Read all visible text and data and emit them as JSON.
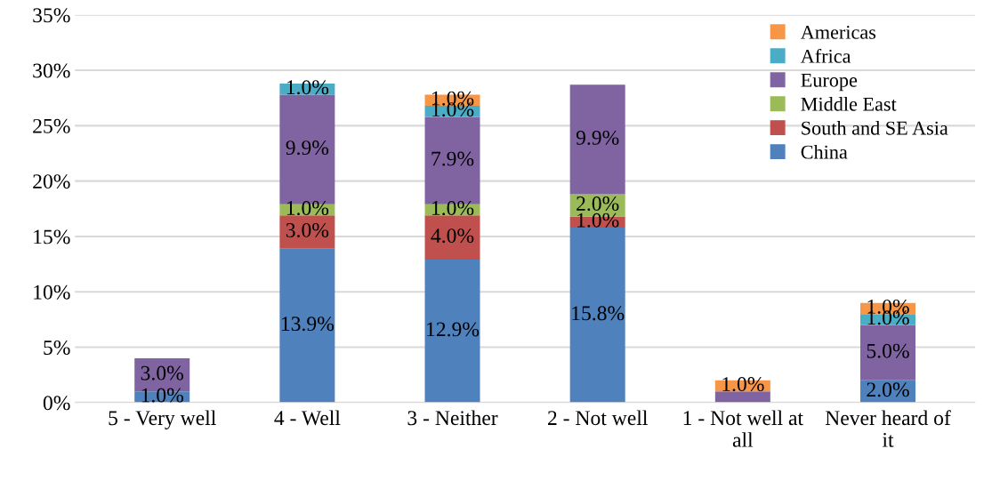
{
  "chart_data": {
    "type": "bar",
    "stacked": true,
    "categories": [
      "5 - Very well",
      "4 - Well",
      "3 - Neither",
      "2 - Not well",
      "1 - Not well at all",
      "Never heard of it"
    ],
    "series": [
      {
        "name": "China",
        "color": "#4f81bd",
        "values": [
          1.0,
          13.9,
          12.9,
          15.8,
          null,
          2.0
        ],
        "value_labels": [
          "1.0%",
          "13.9%",
          "12.9%",
          "15.8%",
          null,
          "2.0%"
        ]
      },
      {
        "name": "South and SE Asia",
        "color": "#c0504d",
        "values": [
          null,
          3.0,
          4.0,
          1.0,
          null,
          null
        ],
        "value_labels": [
          null,
          "3.0%",
          "4.0%",
          "1.0%",
          null,
          null
        ]
      },
      {
        "name": "Middle East",
        "color": "#9bbb59",
        "values": [
          null,
          1.0,
          1.0,
          2.0,
          null,
          null
        ],
        "value_labels": [
          null,
          "1.0%",
          "1.0%",
          "2.0%",
          null,
          null
        ]
      },
      {
        "name": "Europe",
        "color": "#8064a2",
        "values": [
          3.0,
          9.9,
          7.9,
          9.9,
          1.0,
          5.0
        ],
        "value_labels": [
          "3.0%",
          "9.9%",
          "7.9%",
          "9.9%",
          null,
          "5.0%"
        ]
      },
      {
        "name": "Africa",
        "color": "#4bacc6",
        "values": [
          null,
          1.0,
          1.0,
          null,
          null,
          1.0
        ],
        "value_labels": [
          null,
          "1.0%",
          "1.0%",
          null,
          null,
          "1.0%"
        ]
      },
      {
        "name": "Americas",
        "color": "#f79646",
        "values": [
          null,
          null,
          1.0,
          null,
          1.0,
          1.0
        ],
        "value_labels": [
          null,
          null,
          "1.0%",
          null,
          "1.0%",
          "1.0%"
        ]
      }
    ],
    "ylim": [
      0,
      35
    ],
    "yticks": [
      {
        "value": 0,
        "label": "0%"
      },
      {
        "value": 5,
        "label": "5%"
      },
      {
        "value": 10,
        "label": "10%"
      },
      {
        "value": 15,
        "label": "15%"
      },
      {
        "value": 20,
        "label": "20%"
      },
      {
        "value": 25,
        "label": "25%"
      },
      {
        "value": 30,
        "label": "30%"
      },
      {
        "value": 35,
        "label": "35%"
      }
    ],
    "grid": "y",
    "legend": "top right"
  }
}
